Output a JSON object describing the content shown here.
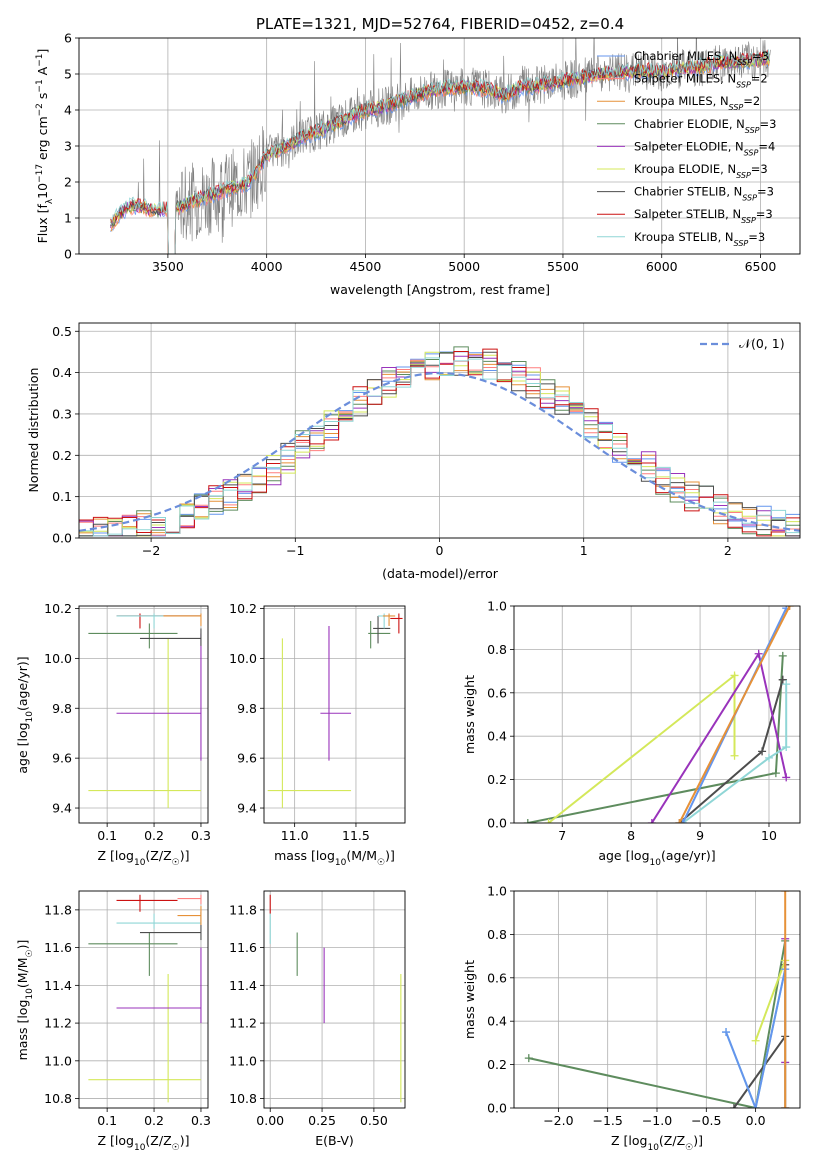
{
  "colors": {
    "Chabrier MILES": "#6495ed",
    "Salpeter MILES": "#ff7f7f",
    "Kroupa MILES": "#e69138",
    "Chabrier ELODIE": "#5e8c5e",
    "Salpeter ELODIE": "#9933bb",
    "Kroupa ELODIE": "#d4e85a",
    "Chabrier STELIB": "#4d4d4d",
    "Salpeter STELIB": "#cc1111",
    "Kroupa STELIB": "#8fd6d6",
    "grid": "#b0b0b0",
    "data": "#808080",
    "gauss": "#6b8edb"
  },
  "chart_data": [
    {
      "type": "line",
      "title": "PLATE=1321, MJD=52764, FIBERID=0452, z=0.4",
      "xlabel": "wavelength [Angstrom, rest frame]",
      "ylabel": "Flux [f",
      "ylabel_sub": "λ",
      "ylabel_rest": "10",
      "ylabel_exp": "−17",
      "ylabel_end": " erg cm",
      "xlim": [
        3050,
        6700
      ],
      "ylim": [
        0,
        6
      ],
      "xticks": [
        3500,
        4000,
        4500,
        5000,
        5500,
        6000,
        6500
      ],
      "yticks": [
        0,
        1,
        2,
        3,
        4,
        5,
        6
      ],
      "legend_location": "top-right",
      "legend": [
        {
          "label": "Chabrier MILES, N",
          "sub": "SSP",
          "tail": "=3",
          "color": "#6495ed"
        },
        {
          "label": "Salpeter MILES, N",
          "sub": "SSP",
          "tail": "=2",
          "color": "#ff7f7f"
        },
        {
          "label": "Kroupa MILES, N",
          "sub": "SSP",
          "tail": "=2",
          "color": "#e69138"
        },
        {
          "label": "Chabrier ELODIE, N",
          "sub": "SSP",
          "tail": "=3",
          "color": "#5e8c5e"
        },
        {
          "label": "Salpeter ELODIE, N",
          "sub": "SSP",
          "tail": "=4",
          "color": "#9933bb"
        },
        {
          "label": "Kroupa ELODIE, N",
          "sub": "SSP",
          "tail": "=3",
          "color": "#d4e85a"
        },
        {
          "label": "Chabrier STELIB, N",
          "sub": "SSP",
          "tail": "=3",
          "color": "#4d4d4d"
        },
        {
          "label": "Salpeter STELIB, N",
          "sub": "SSP",
          "tail": "=3",
          "color": "#cc1111"
        },
        {
          "label": "Kroupa STELIB, N",
          "sub": "SSP",
          "tail": "=3",
          "color": "#8fd6d6"
        }
      ],
      "model_envelope": {
        "x": [
          3210,
          3260,
          3300,
          3350,
          3400,
          3450,
          3500,
          3550,
          3600,
          3650,
          3700,
          3750,
          3800,
          3850,
          3900,
          3950,
          4000,
          4100,
          4200,
          4300,
          4400,
          4500,
          4600,
          4700,
          4800,
          4900,
          5000,
          5100,
          5200,
          5300,
          5400,
          5500,
          5600,
          5700,
          5800,
          5900,
          6000,
          6100,
          6200,
          6300,
          6400,
          6500,
          6550
        ],
        "y": [
          0.8,
          1.15,
          1.3,
          1.35,
          1.25,
          1.2,
          1.25,
          1.3,
          1.4,
          1.5,
          1.6,
          1.7,
          1.8,
          1.9,
          1.95,
          2.3,
          2.75,
          3.0,
          3.3,
          3.5,
          3.75,
          4.0,
          4.1,
          4.3,
          4.5,
          4.6,
          4.65,
          4.6,
          4.4,
          4.65,
          4.7,
          4.8,
          4.9,
          5.0,
          5.05,
          5.1,
          5.05,
          5.15,
          5.2,
          5.3,
          5.35,
          5.4,
          5.45
        ]
      }
    },
    {
      "type": "step",
      "xlabel": "(data-model)/error",
      "ylabel": "Normed distribution",
      "xlim": [
        -2.5,
        2.5
      ],
      "ylim": [
        0,
        0.52
      ],
      "xticks": [
        -2,
        -1,
        0,
        1,
        2
      ],
      "xticklabels": [
        "−2",
        "−1",
        "0",
        "1",
        "2"
      ],
      "yticks": [
        0,
        0.1,
        0.2,
        0.3,
        0.4,
        0.5
      ],
      "yticklabels": [
        "0.0",
        "0.1",
        "0.2",
        "0.3",
        "0.4",
        "0.5"
      ],
      "legend": "𝒩(0, 1)",
      "legend_location": "top-right",
      "bin_width": 0.1
    },
    {
      "type": "scatter",
      "xlabel": "Z [log",
      "xlabel_sub": "10",
      "xlabel_end": "(Z/Z",
      "xlabel_sun": "☉",
      "ylabel": "age  [log",
      "ylabel_sub": "10",
      "ylabel_end": "(age/yr)]",
      "xlim": [
        0.04,
        0.315
      ],
      "ylim": [
        9.34,
        10.21
      ],
      "xticks": [
        0.1,
        0.2,
        0.3
      ],
      "xticklabels": [
        "0.1",
        "0.2",
        "0.3"
      ],
      "yticks": [
        9.4,
        9.6,
        9.8,
        10.0,
        10.2
      ],
      "yticklabels": [
        "9.4",
        "9.6",
        "9.8",
        "10.0",
        "10.2"
      ],
      "points": [
        {
          "x": 0.23,
          "y": 9.47,
          "xerr": [
            0.06,
            0.3
          ],
          "yerr": [
            9.4,
            10.08
          ],
          "color": "#d4e85a"
        },
        {
          "x": 0.3,
          "y": 9.78,
          "xerr": [
            0.12,
            0.3
          ],
          "yerr": [
            9.59,
            10.1
          ],
          "color": "#9933bb"
        },
        {
          "x": 0.19,
          "y": 10.1,
          "xerr": [
            0.06,
            0.25
          ],
          "yerr": [
            10.04,
            10.14
          ],
          "color": "#5e8c5e"
        },
        {
          "x": 0.3,
          "y": 10.08,
          "xerr": [
            0.17,
            0.3
          ],
          "yerr": [
            10.05,
            10.12
          ],
          "color": "#4d4d4d"
        },
        {
          "x": 0.17,
          "y": 10.17,
          "xerr": [
            0.12,
            0.3
          ],
          "yerr": [
            10.12,
            10.18
          ],
          "color": "#cc1111"
        },
        {
          "x": 0.2,
          "y": 10.17,
          "xerr": [
            0.12,
            0.3
          ],
          "yerr": [
            10.12,
            10.18
          ],
          "color": "#8fd6d6"
        },
        {
          "x": 0.3,
          "y": 10.17,
          "xerr": [
            0.22,
            0.3
          ],
          "yerr": [
            10.13,
            10.18
          ],
          "color": "#e69138"
        }
      ]
    },
    {
      "type": "scatter",
      "xlabel": "mass [log",
      "xlabel_sub": "10",
      "xlabel_end": "(M/M",
      "xlabel_sun": "☉",
      "ylabel": "",
      "xlim": [
        10.75,
        11.9
      ],
      "ylim": [
        9.34,
        10.21
      ],
      "xticks": [
        11.0,
        11.5
      ],
      "xticklabels": [
        "11.0",
        "11.5"
      ],
      "yticks": [
        9.4,
        9.6,
        9.8,
        10.0,
        10.2
      ],
      "yticklabels": [
        "9.4",
        "9.6",
        "9.8",
        "10.0",
        "10.2"
      ],
      "points": [
        {
          "x": 10.9,
          "y": 9.47,
          "xerr": [
            10.78,
            11.46
          ],
          "yerr": [
            9.4,
            10.08
          ],
          "color": "#d4e85a"
        },
        {
          "x": 11.28,
          "y": 9.78,
          "xerr": [
            11.21,
            11.46
          ],
          "yerr": [
            9.59,
            10.13
          ],
          "color": "#9933bb"
        },
        {
          "x": 11.62,
          "y": 10.1,
          "xerr": [
            11.6,
            11.78
          ],
          "yerr": [
            10.04,
            10.15
          ],
          "color": "#5e8c5e"
        },
        {
          "x": 11.68,
          "y": 10.12,
          "xerr": [
            11.64,
            11.78
          ],
          "yerr": [
            10.06,
            10.17
          ],
          "color": "#4d4d4d"
        },
        {
          "x": 11.85,
          "y": 10.16,
          "xerr": [
            11.78,
            11.88
          ],
          "yerr": [
            10.1,
            10.18
          ],
          "color": "#cc1111"
        },
        {
          "x": 11.73,
          "y": 10.17,
          "xerr": [
            11.68,
            11.8
          ],
          "yerr": [
            10.12,
            10.18
          ],
          "color": "#8fd6d6"
        },
        {
          "x": 11.77,
          "y": 10.17,
          "xerr": [
            11.72,
            11.82
          ],
          "yerr": [
            10.13,
            10.18
          ],
          "color": "#e69138"
        }
      ]
    },
    {
      "type": "line",
      "xlabel": "age  [log",
      "xlabel_sub": "10",
      "xlabel_end": "(age/yr)]",
      "ylabel": "mass weight",
      "xlim": [
        6.3,
        10.45
      ],
      "ylim": [
        0,
        1
      ],
      "xticks": [
        7,
        8,
        9,
        10
      ],
      "xticklabels": [
        "7",
        "8",
        "9",
        "10"
      ],
      "yticks": [
        0,
        0.2,
        0.4,
        0.6,
        0.8,
        1.0
      ],
      "yticklabels": [
        "0.0",
        "0.2",
        "0.4",
        "0.6",
        "0.8",
        "1.0"
      ],
      "series": [
        {
          "color": "#5e8c5e",
          "x": [
            6.5,
            10.1,
            10.2
          ],
          "y": [
            0.0,
            0.23,
            0.77
          ]
        },
        {
          "color": "#4d4d4d",
          "x": [
            8.7,
            9.9,
            10.2,
            10.2
          ],
          "y": [
            0.0,
            0.33,
            0.66,
            0.66
          ]
        },
        {
          "color": "#d4e85a",
          "x": [
            6.8,
            9.5,
            9.5
          ],
          "y": [
            0.0,
            0.68,
            0.31
          ]
        },
        {
          "color": "#9933bb",
          "x": [
            8.3,
            9.85,
            10.25
          ],
          "y": [
            0.0,
            0.78,
            0.21
          ]
        },
        {
          "color": "#8fd6d6",
          "x": [
            8.75,
            10.0,
            10.25,
            10.25
          ],
          "y": [
            0.0,
            0.3,
            0.35,
            0.64
          ]
        },
        {
          "color": "#6495ed",
          "x": [
            8.75,
            10.25
          ],
          "y": [
            0.0,
            0.99
          ]
        },
        {
          "color": "#e69138",
          "x": [
            8.7,
            10.3
          ],
          "y": [
            0.0,
            1.0
          ]
        }
      ]
    },
    {
      "type": "scatter",
      "xlabel": "Z [log",
      "xlabel_sub": "10",
      "xlabel_end": "(Z/Z",
      "xlabel_sun": "☉",
      "ylabel": "mass [log",
      "ylabel_sub": "10",
      "ylabel_end": "(M/M",
      "ylabel_sun": "☉",
      "xlim": [
        0.04,
        0.315
      ],
      "ylim": [
        10.75,
        11.9
      ],
      "xticks": [
        0.1,
        0.2,
        0.3
      ],
      "xticklabels": [
        "0.1",
        "0.2",
        "0.3"
      ],
      "yticks": [
        10.8,
        11.0,
        11.2,
        11.4,
        11.6,
        11.8
      ],
      "yticklabels": [
        "10.8",
        "11.0",
        "11.2",
        "11.4",
        "11.6",
        "11.8"
      ],
      "points": [
        {
          "x": 0.23,
          "y": 10.9,
          "xerr": [
            0.06,
            0.3
          ],
          "yerr": [
            10.78,
            11.46
          ],
          "color": "#d4e85a"
        },
        {
          "x": 0.3,
          "y": 11.28,
          "xerr": [
            0.12,
            0.3
          ],
          "yerr": [
            11.2,
            11.6
          ],
          "color": "#9933bb"
        },
        {
          "x": 0.19,
          "y": 11.62,
          "xerr": [
            0.06,
            0.25
          ],
          "yerr": [
            11.45,
            11.68
          ],
          "color": "#5e8c5e"
        },
        {
          "x": 0.3,
          "y": 11.68,
          "xerr": [
            0.17,
            0.3
          ],
          "yerr": [
            11.64,
            11.79
          ],
          "color": "#4d4d4d"
        },
        {
          "x": 0.17,
          "y": 11.85,
          "xerr": [
            0.12,
            0.25
          ],
          "yerr": [
            11.79,
            11.88
          ],
          "color": "#cc1111"
        },
        {
          "x": 0.2,
          "y": 11.73,
          "xerr": [
            0.12,
            0.3
          ],
          "yerr": [
            11.7,
            11.78
          ],
          "color": "#8fd6d6"
        },
        {
          "x": 0.3,
          "y": 11.77,
          "xerr": [
            0.25,
            0.3
          ],
          "yerr": [
            11.72,
            11.82
          ],
          "color": "#e69138"
        },
        {
          "x": 0.3,
          "y": 11.86,
          "xerr": [
            0.25,
            0.3
          ],
          "yerr": [
            11.83,
            11.88
          ],
          "color": "#ff7f7f"
        }
      ]
    },
    {
      "type": "scatter",
      "xlabel": "E(B-V)",
      "ylabel": "",
      "xlim": [
        -0.03,
        0.65
      ],
      "ylim": [
        10.75,
        11.9
      ],
      "xticks": [
        0.0,
        0.25,
        0.5
      ],
      "xticklabels": [
        "0.00",
        "0.25",
        "0.50"
      ],
      "yticks": [
        10.8,
        11.0,
        11.2,
        11.4,
        11.6,
        11.8
      ],
      "yticklabels": [
        "10.8",
        "11.0",
        "11.2",
        "11.4",
        "11.6",
        "11.8"
      ],
      "points": [
        {
          "x": 0.0,
          "y": 11.86,
          "xerr": [
            0.0,
            0.0
          ],
          "yerr": [
            11.78,
            11.88
          ],
          "color": "#cc1111"
        },
        {
          "x": 0.0,
          "y": 11.7,
          "xerr": [
            0.0,
            0.0
          ],
          "yerr": [
            11.62,
            11.78
          ],
          "color": "#8fd6d6"
        },
        {
          "x": 0.13,
          "y": 11.62,
          "xerr": [
            0.13,
            0.13
          ],
          "yerr": [
            11.45,
            11.68
          ],
          "color": "#5e8c5e"
        },
        {
          "x": 0.26,
          "y": 11.4,
          "xerr": [
            0.26,
            0.26
          ],
          "yerr": [
            11.2,
            11.6
          ],
          "color": "#9933bb"
        },
        {
          "x": 0.63,
          "y": 11.1,
          "xerr": [
            0.63,
            0.63
          ],
          "yerr": [
            10.78,
            11.46
          ],
          "color": "#d4e85a"
        }
      ]
    },
    {
      "type": "line",
      "xlabel": "Z [log",
      "xlabel_sub": "10",
      "xlabel_end": "(Z/Z",
      "xlabel_sun": "☉",
      "ylabel": "mass weight",
      "xlim": [
        -2.45,
        0.45
      ],
      "ylim": [
        0,
        1
      ],
      "xticks": [
        -2.0,
        -1.5,
        -1.0,
        -0.5,
        0.0
      ],
      "xticklabels": [
        "−2.0",
        "−1.5",
        "−1.0",
        "−0.5",
        "0.0"
      ],
      "yticks": [
        0,
        0.2,
        0.4,
        0.6,
        0.8,
        1.0
      ],
      "yticklabels": [
        "0.0",
        "0.2",
        "0.4",
        "0.6",
        "0.8",
        "1.0"
      ],
      "series": [
        {
          "color": "#5e8c5e",
          "x": [
            -2.3,
            0.0,
            0.3
          ],
          "y": [
            0.23,
            0.0,
            0.77
          ]
        },
        {
          "color": "#4d4d4d",
          "x": [
            -0.22,
            0.3,
            0.3
          ],
          "y": [
            0.0,
            0.33,
            0.66
          ]
        },
        {
          "color": "#d4e85a",
          "x": [
            0.0,
            0.3,
            0.3
          ],
          "y": [
            0.31,
            0.68,
            0.0
          ]
        },
        {
          "color": "#9933bb",
          "x": [
            0.3,
            0.3,
            0.3
          ],
          "y": [
            0.0,
            0.78,
            0.21
          ]
        },
        {
          "color": "#8fd6d6",
          "x": [
            -0.3,
            0.0,
            0.3,
            0.3
          ],
          "y": [
            0.35,
            0.0,
            0.64,
            0.0
          ]
        },
        {
          "color": "#6495ed",
          "x": [
            -0.3,
            0.0,
            0.3
          ],
          "y": [
            0.35,
            0.0,
            0.64
          ]
        },
        {
          "color": "#e69138",
          "x": [
            0.3,
            0.3
          ],
          "y": [
            0.0,
            1.0
          ]
        }
      ]
    }
  ]
}
